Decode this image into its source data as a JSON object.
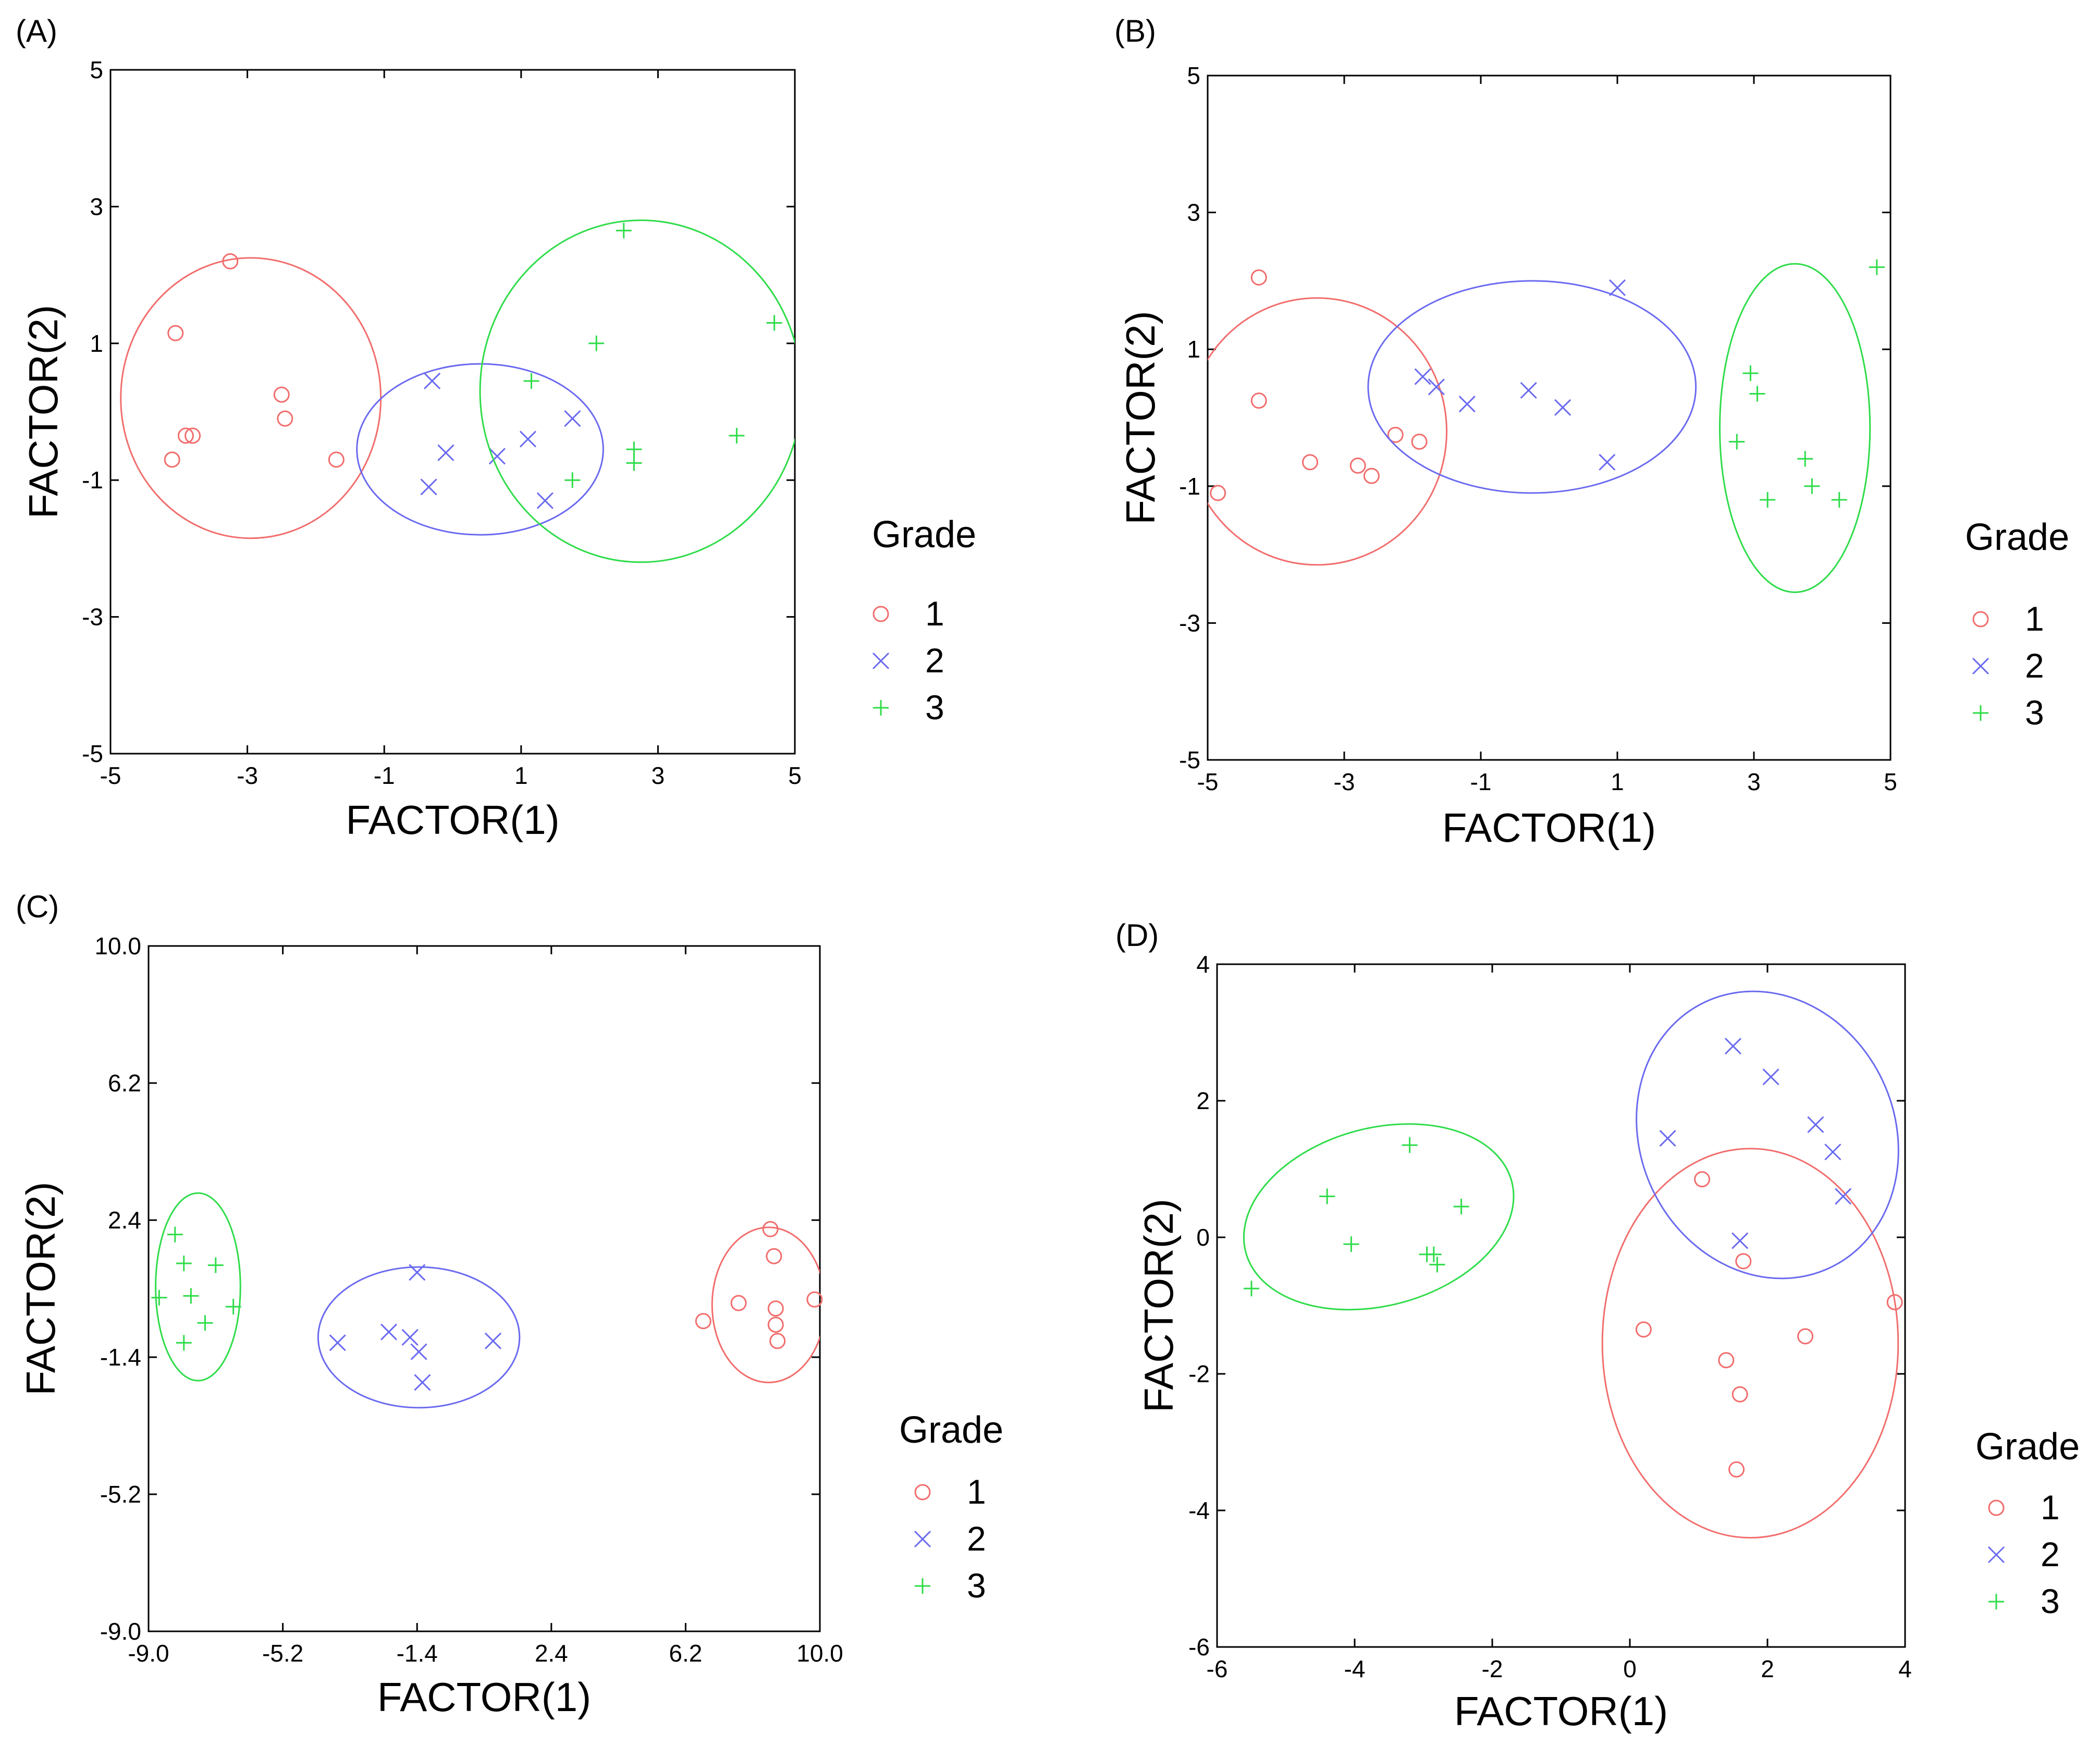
{
  "colors": {
    "1": "#f26d6d",
    "2": "#6a6af0",
    "3": "#2fdc4a"
  },
  "chart_data": [
    {
      "panel": "(A)",
      "type": "scatter",
      "xlabel": "FACTOR(1)",
      "ylabel": "FACTOR(2)",
      "xlim": [
        -5,
        5
      ],
      "ylim": [
        -5,
        5
      ],
      "xticks": [
        -5,
        -3,
        -1,
        1,
        3,
        5
      ],
      "yticks": [
        -5,
        -3,
        -1,
        1,
        3,
        5
      ],
      "xtick_labels": [
        "-5",
        "-3",
        "-1",
        "1",
        "3",
        "5"
      ],
      "ytick_labels": [
        "-5",
        "-3",
        "-1",
        "1",
        "3",
        "5"
      ],
      "legend": {
        "title": "Grade",
        "entries": [
          "1",
          "2",
          "3"
        ]
      },
      "series": [
        {
          "name": "1",
          "marker": "circle",
          "points": [
            [
              -3.25,
              2.2
            ],
            [
              -4.05,
              1.15
            ],
            [
              -2.5,
              0.25
            ],
            [
              -2.45,
              -0.1
            ],
            [
              -3.9,
              -0.35
            ],
            [
              -3.8,
              -0.35
            ],
            [
              -4.1,
              -0.7
            ],
            [
              -1.7,
              -0.7
            ]
          ],
          "ellipse": {
            "cx": -2.95,
            "cy": 0.2,
            "rx": 1.9,
            "ry": 2.05,
            "angle": 0
          }
        },
        {
          "name": "2",
          "marker": "x",
          "points": [
            [
              -0.3,
              0.45
            ],
            [
              -0.1,
              -0.6
            ],
            [
              0.65,
              -0.65
            ],
            [
              1.1,
              -0.4
            ],
            [
              1.75,
              -0.1
            ],
            [
              -0.35,
              -1.1
            ],
            [
              1.35,
              -1.3
            ]
          ],
          "ellipse": {
            "cx": 0.4,
            "cy": -0.55,
            "rx": 1.8,
            "ry": 1.25,
            "angle": 0
          }
        },
        {
          "name": "3",
          "marker": "plus",
          "points": [
            [
              2.5,
              2.65
            ],
            [
              4.7,
              1.3
            ],
            [
              2.1,
              1.0
            ],
            [
              1.15,
              0.45
            ],
            [
              4.15,
              -0.35
            ],
            [
              2.65,
              -0.55
            ],
            [
              2.65,
              -0.75
            ],
            [
              1.75,
              -1.0
            ]
          ],
          "ellipse": {
            "cx": 2.75,
            "cy": 0.3,
            "rx": 2.35,
            "ry": 2.5,
            "angle": 0
          }
        }
      ]
    },
    {
      "panel": "(B)",
      "type": "scatter",
      "xlabel": "FACTOR(1)",
      "ylabel": "FACTOR(2)",
      "xlim": [
        -5,
        5
      ],
      "ylim": [
        -5,
        5
      ],
      "xticks": [
        -5,
        -3,
        -1,
        1,
        3,
        5
      ],
      "yticks": [
        -5,
        -3,
        -1,
        1,
        3,
        5
      ],
      "xtick_labels": [
        "-5",
        "-3",
        "-1",
        "1",
        "3",
        "5"
      ],
      "ytick_labels": [
        "-5",
        "-3",
        "-1",
        "1",
        "3",
        "5"
      ],
      "legend": {
        "title": "Grade",
        "entries": [
          "1",
          "2",
          "3"
        ]
      },
      "series": [
        {
          "name": "1",
          "marker": "circle",
          "points": [
            [
              -4.25,
              2.05
            ],
            [
              -4.25,
              0.25
            ],
            [
              -2.25,
              -0.25
            ],
            [
              -1.9,
              -0.35
            ],
            [
              -3.5,
              -0.65
            ],
            [
              -2.8,
              -0.7
            ],
            [
              -2.6,
              -0.85
            ],
            [
              -4.85,
              -1.1
            ]
          ],
          "ellipse": {
            "cx": -3.4,
            "cy": -0.2,
            "rx": 1.9,
            "ry": 1.95,
            "angle": 0
          }
        },
        {
          "name": "2",
          "marker": "x",
          "points": [
            [
              1.0,
              1.9
            ],
            [
              -1.85,
              0.6
            ],
            [
              -1.65,
              0.45
            ],
            [
              -1.2,
              0.2
            ],
            [
              -0.3,
              0.4
            ],
            [
              0.2,
              0.15
            ],
            [
              0.85,
              -0.65
            ]
          ],
          "ellipse": {
            "cx": -0.25,
            "cy": 0.45,
            "rx": 2.4,
            "ry": 1.55,
            "angle": 0
          }
        },
        {
          "name": "3",
          "marker": "plus",
          "points": [
            [
              4.8,
              2.2
            ],
            [
              2.95,
              0.65
            ],
            [
              3.05,
              0.35
            ],
            [
              2.75,
              -0.35
            ],
            [
              3.75,
              -0.6
            ],
            [
              3.85,
              -1.0
            ],
            [
              3.2,
              -1.2
            ],
            [
              4.25,
              -1.2
            ]
          ],
          "ellipse": {
            "cx": 3.6,
            "cy": -0.15,
            "rx": 1.1,
            "ry": 2.4,
            "angle": 0
          }
        }
      ]
    },
    {
      "panel": "(C)",
      "type": "scatter",
      "xlabel": "FACTOR(1)",
      "ylabel": "FACTOR(2)",
      "xlim": [
        -9,
        10
      ],
      "ylim": [
        -9,
        10
      ],
      "xticks": [
        -9,
        -5.2,
        -1.4,
        2.4,
        6.2,
        10
      ],
      "yticks": [
        -9,
        -5.2,
        -1.4,
        2.4,
        6.2,
        10
      ],
      "xtick_labels": [
        "-9.0",
        "-5.2",
        "-1.4",
        "2.4",
        "6.2",
        "10.0"
      ],
      "ytick_labels": [
        "-9.0",
        "-5.2",
        "-1.4",
        "2.4",
        "6.2",
        "10.0"
      ],
      "legend": {
        "title": "Grade",
        "entries": [
          "1",
          "2",
          "3"
        ]
      },
      "series": [
        {
          "name": "1",
          "marker": "circle",
          "points": [
            [
              8.6,
              2.15
            ],
            [
              8.7,
              1.4
            ],
            [
              7.7,
              0.1
            ],
            [
              8.75,
              -0.05
            ],
            [
              9.85,
              0.2
            ],
            [
              6.7,
              -0.4
            ],
            [
              8.75,
              -0.5
            ],
            [
              8.8,
              -0.95
            ]
          ],
          "ellipse": {
            "cx": 8.55,
            "cy": 0.05,
            "rx": 1.6,
            "ry": 2.15,
            "angle": 0
          }
        },
        {
          "name": "2",
          "marker": "x",
          "points": [
            [
              -1.4,
              0.95
            ],
            [
              -2.2,
              -0.7
            ],
            [
              -1.6,
              -0.85
            ],
            [
              -3.65,
              -1.0
            ],
            [
              -1.35,
              -1.25
            ],
            [
              0.75,
              -0.95
            ],
            [
              -1.25,
              -2.1
            ]
          ],
          "ellipse": {
            "cx": -1.35,
            "cy": -0.85,
            "rx": 2.85,
            "ry": 1.95,
            "angle": 0
          }
        },
        {
          "name": "3",
          "marker": "plus",
          "points": [
            [
              -8.25,
              2.0
            ],
            [
              -8.0,
              1.2
            ],
            [
              -7.1,
              1.15
            ],
            [
              -8.7,
              0.25
            ],
            [
              -7.8,
              0.3
            ],
            [
              -6.6,
              0.0
            ],
            [
              -7.4,
              -0.45
            ],
            [
              -8.0,
              -1.0
            ]
          ],
          "ellipse": {
            "cx": -7.6,
            "cy": 0.55,
            "rx": 1.2,
            "ry": 2.6,
            "angle": 0
          }
        }
      ]
    },
    {
      "panel": "(D)",
      "type": "scatter",
      "xlabel": "FACTOR(1)",
      "ylabel": "FACTOR(2)",
      "xlim": [
        -6,
        4
      ],
      "ylim": [
        -6,
        4
      ],
      "xticks": [
        -6,
        -4,
        -2,
        0,
        2,
        4
      ],
      "yticks": [
        -6,
        -4,
        -2,
        0,
        2,
        4
      ],
      "xtick_labels": [
        "-6",
        "-4",
        "-2",
        "0",
        "2",
        "4"
      ],
      "ytick_labels": [
        "-6",
        "-4",
        "-2",
        "0",
        "2",
        "4"
      ],
      "legend": {
        "title": "Grade",
        "entries": [
          "1",
          "2",
          "3"
        ]
      },
      "series": [
        {
          "name": "1",
          "marker": "circle",
          "points": [
            [
              1.05,
              0.85
            ],
            [
              1.65,
              -0.35
            ],
            [
              0.2,
              -1.35
            ],
            [
              2.55,
              -1.45
            ],
            [
              3.85,
              -0.95
            ],
            [
              1.4,
              -1.8
            ],
            [
              1.6,
              -2.3
            ],
            [
              1.55,
              -3.4
            ]
          ],
          "ellipse": {
            "cx": 1.75,
            "cy": -1.55,
            "rx": 2.15,
            "ry": 2.85,
            "angle": 0
          }
        },
        {
          "name": "2",
          "marker": "x",
          "points": [
            [
              1.5,
              2.8
            ],
            [
              2.05,
              2.35
            ],
            [
              2.7,
              1.65
            ],
            [
              0.55,
              1.45
            ],
            [
              2.95,
              1.25
            ],
            [
              3.1,
              0.6
            ],
            [
              1.6,
              -0.05
            ]
          ],
          "ellipse": {
            "cx": 2.0,
            "cy": 1.5,
            "rx": 1.85,
            "ry": 2.15,
            "angle": -25
          }
        },
        {
          "name": "3",
          "marker": "plus",
          "points": [
            [
              -3.2,
              1.35
            ],
            [
              -4.4,
              0.6
            ],
            [
              -2.45,
              0.45
            ],
            [
              -4.05,
              -0.1
            ],
            [
              -2.95,
              -0.25
            ],
            [
              -2.85,
              -0.25
            ],
            [
              -2.8,
              -0.4
            ],
            [
              -5.5,
              -0.75
            ]
          ],
          "ellipse": {
            "cx": -3.65,
            "cy": 0.3,
            "rx": 2.0,
            "ry": 1.3,
            "angle": -15
          }
        }
      ]
    }
  ]
}
